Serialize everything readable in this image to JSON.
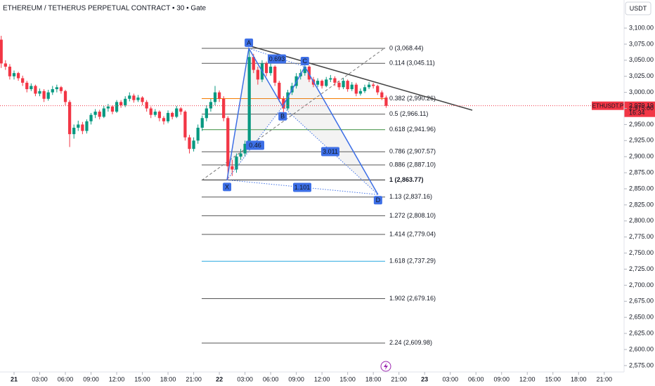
{
  "chart_data": {
    "type": "candlestick",
    "title": "ETHEREUM / TETHERUS PERPETUAL CONTRACT • 30 • Gate",
    "currency": "USDT",
    "symbol": "ETHUSDT.P",
    "last_price": {
      "value": 2979.19,
      "label": "2,979.19"
    },
    "countdown": "16:34",
    "up_color": "#089981",
    "down_color": "#f23645",
    "xlim": [
      -1.643,
      69.84
    ],
    "ylim": [
      2570.5,
      3143.7
    ],
    "xticks": [
      {
        "value": 0,
        "label": "21"
      },
      {
        "value": 3,
        "label": "03:00"
      },
      {
        "value": 6,
        "label": "06:00"
      },
      {
        "value": 9,
        "label": "09:00"
      },
      {
        "value": 12,
        "label": "12:00"
      },
      {
        "value": 15,
        "label": "15:00"
      },
      {
        "value": 18,
        "label": "18:00"
      },
      {
        "value": 21,
        "label": "21:00"
      },
      {
        "value": 24,
        "label": "22"
      },
      {
        "value": 27,
        "label": "03:00"
      },
      {
        "value": 30,
        "label": "06:00"
      },
      {
        "value": 33,
        "label": "09:00"
      },
      {
        "value": 36,
        "label": "12:00"
      },
      {
        "value": 39,
        "label": "15:00"
      },
      {
        "value": 42,
        "label": "18:00"
      },
      {
        "value": 45,
        "label": "21:00"
      },
      {
        "value": 48,
        "label": "23"
      },
      {
        "value": 51,
        "label": "03:00"
      },
      {
        "value": 54,
        "label": "06:00"
      },
      {
        "value": 57,
        "label": "09:00"
      },
      {
        "value": 60,
        "label": "12:00"
      },
      {
        "value": 63,
        "label": "15:00"
      },
      {
        "value": 66,
        "label": "18:00"
      },
      {
        "value": 69,
        "label": "21:00"
      }
    ],
    "yticks": [
      {
        "value": 3100,
        "label": "3,100.00"
      },
      {
        "value": 3075,
        "label": "3,075.00"
      },
      {
        "value": 3050,
        "label": "3,050.00"
      },
      {
        "value": 3025,
        "label": "3,025.00"
      },
      {
        "value": 3000,
        "label": "3,000.00"
      },
      {
        "value": 2975,
        "label": "2,975.00"
      },
      {
        "value": 2950,
        "label": "2,950.00"
      },
      {
        "value": 2925,
        "label": "2,925.00"
      },
      {
        "value": 2900,
        "label": "2,900.00"
      },
      {
        "value": 2875,
        "label": "2,875.00"
      },
      {
        "value": 2850,
        "label": "2,850.00"
      },
      {
        "value": 2825,
        "label": "2,825.00"
      },
      {
        "value": 2800,
        "label": "2,800.00"
      },
      {
        "value": 2775,
        "label": "2,775.00"
      },
      {
        "value": 2750,
        "label": "2,750.00"
      },
      {
        "value": 2725,
        "label": "2,725.00"
      },
      {
        "value": 2700,
        "label": "2,700.00"
      },
      {
        "value": 2675,
        "label": "2,675.00"
      },
      {
        "value": 2650,
        "label": "2,650.00"
      },
      {
        "value": 2625,
        "label": "2,625.00"
      },
      {
        "value": 2600,
        "label": "2,600.00"
      },
      {
        "value": 2575,
        "label": "2,575.00"
      }
    ],
    "candles": [
      [
        -1.5,
        3082,
        3088,
        3038,
        3045
      ],
      [
        -1,
        3045,
        3050,
        3035,
        3040
      ],
      [
        -0.5,
        3040,
        3044,
        3020,
        3025
      ],
      [
        0,
        3025,
        3034,
        3020,
        3030
      ],
      [
        0.5,
        3030,
        3032,
        3018,
        3022
      ],
      [
        1,
        3022,
        3026,
        3010,
        3015
      ],
      [
        1.5,
        3015,
        3018,
        3000,
        3005
      ],
      [
        2,
        3005,
        3014,
        3002,
        3010
      ],
      [
        2.5,
        3010,
        3012,
        2994,
        2998
      ],
      [
        3,
        2998,
        3006,
        2994,
        3002
      ],
      [
        3.5,
        3002,
        3005,
        2985,
        2990
      ],
      [
        4,
        2990,
        3004,
        2987,
        3000
      ],
      [
        4.5,
        3000,
        3010,
        2996,
        3005
      ],
      [
        5,
        3005,
        3012,
        3000,
        3008
      ],
      [
        5.5,
        3008,
        3010,
        2998,
        3002
      ],
      [
        6,
        3002,
        3004,
        2980,
        2985
      ],
      [
        6.5,
        2985,
        2988,
        2915,
        2935
      ],
      [
        7,
        2935,
        2950,
        2928,
        2945
      ],
      [
        7.5,
        2945,
        2956,
        2940,
        2950
      ],
      [
        8,
        2950,
        2954,
        2935,
        2940
      ],
      [
        8.5,
        2940,
        2958,
        2936,
        2955
      ],
      [
        9,
        2955,
        2968,
        2950,
        2965
      ],
      [
        9.5,
        2965,
        2974,
        2960,
        2970
      ],
      [
        10,
        2970,
        2973,
        2958,
        2962
      ],
      [
        10.5,
        2962,
        2979,
        2960,
        2975
      ],
      [
        11,
        2975,
        2982,
        2970,
        2978
      ],
      [
        11.5,
        2978,
        2980,
        2966,
        2970
      ],
      [
        12,
        2970,
        2988,
        2968,
        2985
      ],
      [
        12.5,
        2985,
        2988,
        2976,
        2980
      ],
      [
        13,
        2980,
        2994,
        2977,
        2990
      ],
      [
        13.5,
        2990,
        3000,
        2986,
        2995
      ],
      [
        14,
        2995,
        2998,
        2984,
        2988
      ],
      [
        14.5,
        2988,
        2996,
        2985,
        2992
      ],
      [
        15,
        2992,
        2994,
        2980,
        2985
      ],
      [
        15.5,
        2985,
        2988,
        2970,
        2975
      ],
      [
        16,
        2975,
        2978,
        2960,
        2965
      ],
      [
        16.5,
        2965,
        2974,
        2962,
        2970
      ],
      [
        17,
        2970,
        2972,
        2955,
        2960
      ],
      [
        17.5,
        2960,
        2963,
        2950,
        2955
      ],
      [
        18,
        2955,
        2972,
        2952,
        2968
      ],
      [
        18.5,
        2968,
        2970,
        2958,
        2962
      ],
      [
        19,
        2962,
        2979,
        2960,
        2975
      ],
      [
        19.5,
        2975,
        2977,
        2965,
        2970
      ],
      [
        20,
        2970,
        2972,
        2925,
        2930
      ],
      [
        20.5,
        2930,
        2934,
        2905,
        2912
      ],
      [
        21,
        2912,
        2930,
        2908,
        2925
      ],
      [
        21.5,
        2925,
        2950,
        2920,
        2945
      ],
      [
        22,
        2945,
        2964,
        2940,
        2960
      ],
      [
        22.5,
        2960,
        2980,
        2955,
        2975
      ],
      [
        23,
        2975,
        2990,
        2970,
        2985
      ],
      [
        23.5,
        2985,
        3010,
        2980,
        3000
      ],
      [
        24,
        3000,
        3003,
        2985,
        2990
      ],
      [
        24.5,
        2990,
        2994,
        2955,
        2960
      ],
      [
        25,
        2960,
        2963,
        2865,
        2885
      ],
      [
        25.5,
        2885,
        2895,
        2870,
        2880
      ],
      [
        26,
        2880,
        2905,
        2875,
        2900
      ],
      [
        26.5,
        2900,
        2912,
        2895,
        2905
      ],
      [
        27,
        2905,
        2925,
        2900,
        2920
      ],
      [
        27.5,
        2920,
        3068,
        2915,
        3055
      ],
      [
        28,
        3055,
        3060,
        3030,
        3035
      ],
      [
        28.5,
        3035,
        3040,
        3012,
        3020
      ],
      [
        29,
        3020,
        3050,
        3016,
        3045
      ],
      [
        29.5,
        3045,
        3048,
        3025,
        3030
      ],
      [
        30,
        3030,
        3046,
        3026,
        3040
      ],
      [
        30.5,
        3040,
        3042,
        3010,
        3015
      ],
      [
        31,
        3015,
        3018,
        2985,
        2990
      ],
      [
        31.5,
        2990,
        2994,
        2966,
        2975
      ],
      [
        32,
        2975,
        3004,
        2972,
        3000
      ],
      [
        32.5,
        3000,
        3015,
        2996,
        3010
      ],
      [
        33,
        3010,
        3030,
        3006,
        3025
      ],
      [
        33.5,
        3025,
        3036,
        3020,
        3030
      ],
      [
        34,
        3030,
        3045,
        3026,
        3040
      ],
      [
        34.5,
        3040,
        3042,
        3016,
        3020
      ],
      [
        35,
        3020,
        3024,
        3008,
        3012
      ],
      [
        35.5,
        3012,
        3022,
        3008,
        3018
      ],
      [
        36,
        3018,
        3020,
        3006,
        3010
      ],
      [
        36.5,
        3010,
        3024,
        3008,
        3020
      ],
      [
        37,
        3020,
        3027,
        3016,
        3022
      ],
      [
        37.5,
        3022,
        3025,
        3010,
        3015
      ],
      [
        38,
        3015,
        3018,
        3004,
        3008
      ],
      [
        38.5,
        3008,
        3022,
        3005,
        3018
      ],
      [
        39,
        3018,
        3020,
        3001,
        3005
      ],
      [
        39.5,
        3005,
        3016,
        3002,
        3012
      ],
      [
        40,
        3012,
        3015,
        2994,
        2998
      ],
      [
        40.5,
        2998,
        3006,
        2995,
        3002
      ],
      [
        41,
        3002,
        3012,
        2999,
        3008
      ],
      [
        41.5,
        3008,
        3016,
        3005,
        3012
      ],
      [
        42,
        3012,
        3015,
        3006,
        3010
      ],
      [
        42.5,
        3010,
        3012,
        2996,
        3000
      ],
      [
        43,
        3000,
        3003,
        2988,
        2992
      ],
      [
        43.5,
        2992,
        2995,
        2976,
        2979
      ]
    ],
    "fib_levels": [
      {
        "label": "0 (3,068.44)",
        "value": 3068.44,
        "color": "#555555"
      },
      {
        "label": "0.114 (3,045.11)",
        "value": 3045.11,
        "color": "#555555"
      },
      {
        "label": "0.382 (2,990.26)",
        "value": 2990.26,
        "color": "#f57c00"
      },
      {
        "label": "0.5 (2,966.11)",
        "value": 2966.11,
        "color": "#555555"
      },
      {
        "label": "0.618 (2,941.96)",
        "value": 2941.96,
        "color": "#388e3c"
      },
      {
        "label": "0.786 (2,907.57)",
        "value": 2907.57,
        "color": "#555555"
      },
      {
        "label": "0.886 (2,887.10)",
        "value": 2887.1,
        "color": "#555555"
      },
      {
        "label": "1 (2,863.77)",
        "value": 2863.77,
        "color": "#222222"
      },
      {
        "label": "1.13 (2,837.16)",
        "value": 2837.16,
        "color": "#555555"
      },
      {
        "label": "1.272 (2,808.10)",
        "value": 2808.1,
        "color": "#555555"
      },
      {
        "label": "1.414 (2,779.04)",
        "value": 2779.04,
        "color": "#555555"
      },
      {
        "label": "1.618 (2,737.29)",
        "value": 2737.29,
        "color": "#29a8e0"
      },
      {
        "label": "1.902 (2,679.16)",
        "value": 2679.16,
        "color": "#555555"
      },
      {
        "label": "2.24 (2,609.98)",
        "value": 2609.98,
        "color": "#555555"
      }
    ],
    "pattern_points": [
      {
        "label": "X",
        "x": 24.9,
        "price": 2863.77
      },
      {
        "label": "A",
        "x": 27.45,
        "price": 3068.44
      },
      {
        "label": "B",
        "x": 31.4,
        "price": 2978
      },
      {
        "label": "C",
        "x": 34.0,
        "price": 3040
      },
      {
        "label": "D",
        "x": 42.55,
        "price": 2841
      }
    ],
    "pattern_ratios": [
      "0.693",
      "0.46",
      "3.011",
      "1.101"
    ],
    "pattern_color": "#3d6fe6"
  }
}
